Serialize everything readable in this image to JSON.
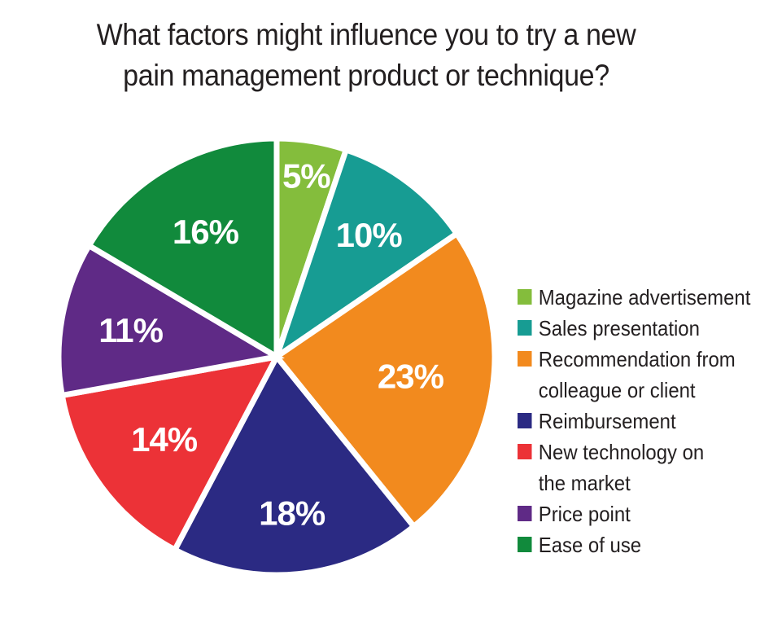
{
  "chart_data": {
    "type": "pie",
    "title": "What factors might influence you to try a new pain management product or technique?",
    "title_lines": [
      "What factors might influence you to try a new",
      "pain management product or technique?"
    ],
    "slices": [
      {
        "label": "Magazine advertisement",
        "label_lines": [
          "Magazine advertisement"
        ],
        "value": 5,
        "value_label": "5%",
        "color": "#84bd3c"
      },
      {
        "label": "Sales presentation",
        "label_lines": [
          "Sales presentation"
        ],
        "value": 10,
        "value_label": "10%",
        "color": "#179c93"
      },
      {
        "label": "Recommendation from colleague or client",
        "label_lines": [
          "Recommendation from",
          "colleague or client"
        ],
        "value": 23,
        "value_label": "23%",
        "color": "#f28a1e"
      },
      {
        "label": "Reimbursement",
        "label_lines": [
          "Reimbursement"
        ],
        "value": 18,
        "value_label": "18%",
        "color": "#2b2a83"
      },
      {
        "label": "New technology on the market",
        "label_lines": [
          "New technology on",
          "the market"
        ],
        "value": 14,
        "value_label": "14%",
        "color": "#ec3237"
      },
      {
        "label": "Price point",
        "label_lines": [
          "Price point"
        ],
        "value": 11,
        "value_label": "11%",
        "color": "#5f2a86"
      },
      {
        "label": "Ease of use",
        "label_lines": [
          "Ease of use"
        ],
        "value": 16,
        "value_label": "16%",
        "color": "#118a3c"
      }
    ],
    "legend_position": "right"
  }
}
